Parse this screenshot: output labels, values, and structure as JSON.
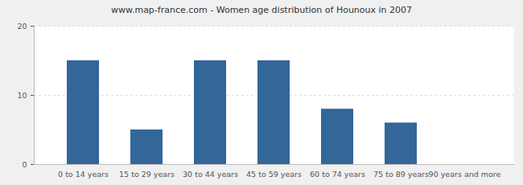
{
  "chart_data": {
    "type": "bar",
    "title": "www.map-france.com - Women age distribution of Hounoux in 2007",
    "categories": [
      "0 to 14 years",
      "15 to 29 years",
      "30 to 44 years",
      "45 to 59 years",
      "60 to 74 years",
      "75 to 89 years",
      "90 years and more"
    ],
    "values": [
      15,
      5,
      15,
      15,
      8,
      6,
      0
    ],
    "color": "#336699",
    "ylim": [
      0,
      20
    ],
    "yticks": [
      0,
      10,
      20
    ],
    "grid": true
  }
}
